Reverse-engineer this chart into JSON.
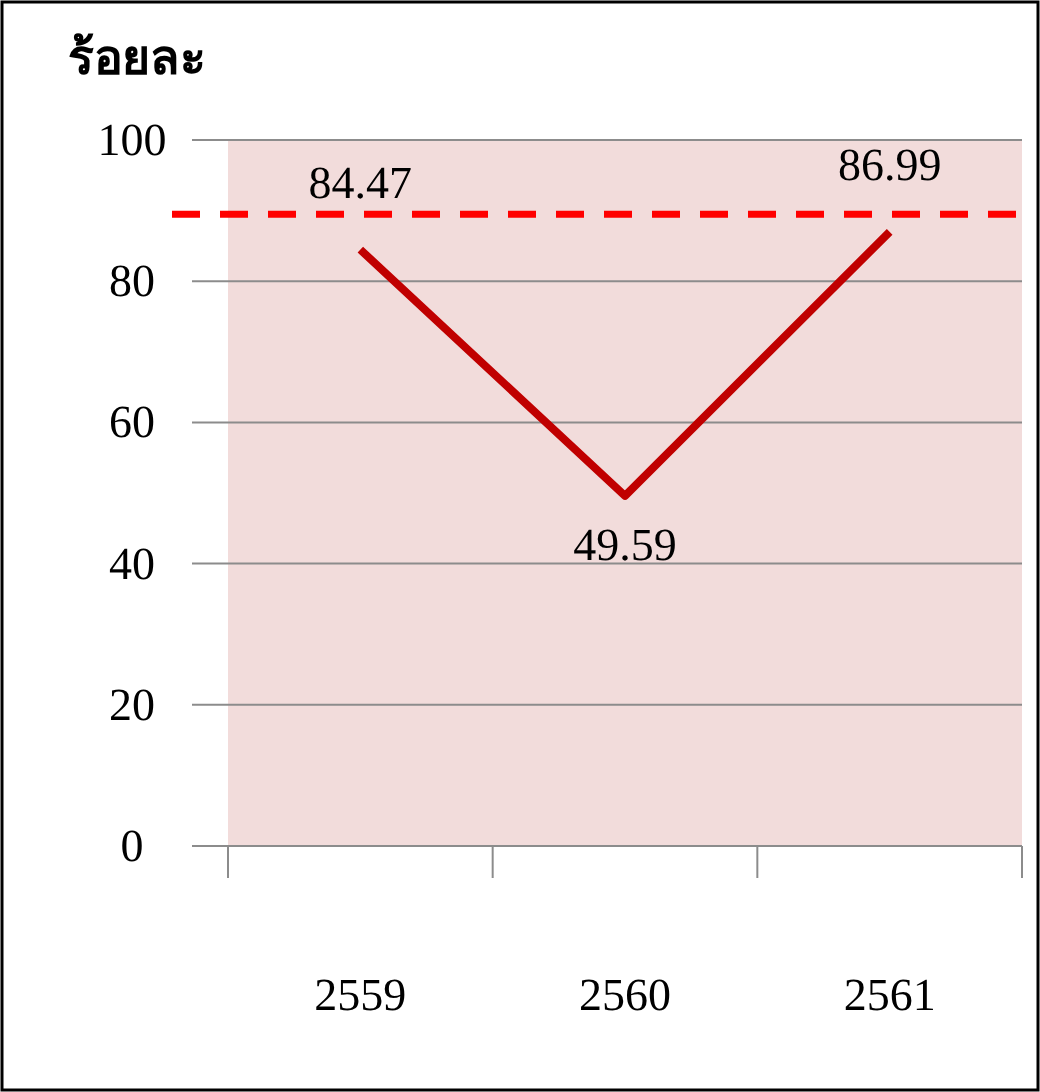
{
  "chart_data": {
    "type": "line",
    "ylabel": "ร้อยละ",
    "categories": [
      "2559",
      "2560",
      "2561"
    ],
    "series": [
      {
        "color": "#c00000",
        "values": [
          84.47,
          49.59,
          86.99
        ]
      }
    ],
    "ylim": [
      0,
      100
    ],
    "yticks": [
      0,
      20,
      40,
      60,
      80,
      100
    ],
    "grid": "y",
    "data_labels": true,
    "marker": "none",
    "line_style": "solid",
    "ref_lines": [
      {
        "axis": "y",
        "value": 89.5,
        "color": "#ff0000",
        "line_style": "dashed"
      }
    ]
  }
}
